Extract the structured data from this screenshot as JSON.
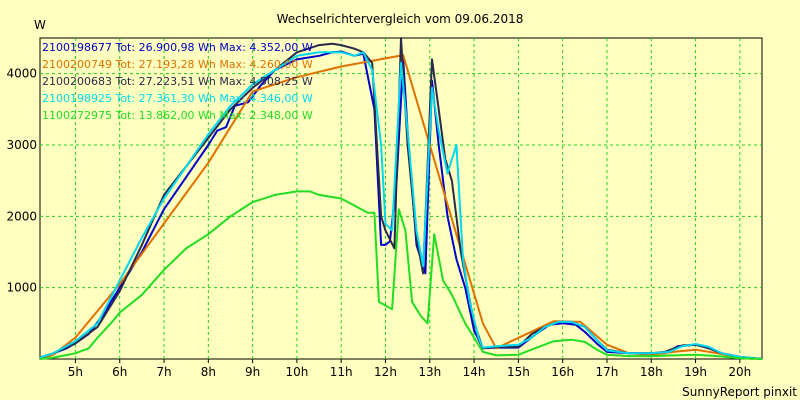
{
  "chart_data": {
    "type": "line",
    "title": "Wechselrichtervergleich vom 09.06.2018",
    "ylabel": "W",
    "footer": "SunnyReport pinxit",
    "xlim": [
      4.2,
      20.5
    ],
    "ylim": [
      0,
      4500
    ],
    "yticks": [
      1000,
      2000,
      3000,
      4000
    ],
    "xticks": [
      {
        "v": 5,
        "label": "5h"
      },
      {
        "v": 6,
        "label": "6h"
      },
      {
        "v": 7,
        "label": "7h"
      },
      {
        "v": 8,
        "label": "8h"
      },
      {
        "v": 9,
        "label": "9h"
      },
      {
        "v": 10,
        "label": "10h"
      },
      {
        "v": 11,
        "label": "11h"
      },
      {
        "v": 12,
        "label": "12h"
      },
      {
        "v": 13,
        "label": "13h"
      },
      {
        "v": 14,
        "label": "14h"
      },
      {
        "v": 15,
        "label": "15h"
      },
      {
        "v": 16,
        "label": "16h"
      },
      {
        "v": 17,
        "label": "17h"
      },
      {
        "v": 18,
        "label": "18h"
      },
      {
        "v": 19,
        "label": "19h"
      },
      {
        "v": 20,
        "label": "20h"
      }
    ],
    "grid": true,
    "series": [
      {
        "name": "2100198677",
        "legend": "2100198677 Tot: 26.900,98 Wh Max: 4.352,00 W",
        "color": "#0000CC",
        "points": [
          [
            4.2,
            20
          ],
          [
            4.5,
            80
          ],
          [
            4.8,
            150
          ],
          [
            5.0,
            220
          ],
          [
            5.3,
            350
          ],
          [
            5.6,
            600
          ],
          [
            6.0,
            1000
          ],
          [
            6.5,
            1500
          ],
          [
            7.0,
            2100
          ],
          [
            7.5,
            2550
          ],
          [
            8.0,
            3000
          ],
          [
            8.2,
            3200
          ],
          [
            8.4,
            3250
          ],
          [
            8.6,
            3550
          ],
          [
            8.9,
            3600
          ],
          [
            9.2,
            3850
          ],
          [
            9.5,
            4050
          ],
          [
            10.0,
            4200
          ],
          [
            10.5,
            4250
          ],
          [
            10.8,
            4300
          ],
          [
            11.0,
            4310
          ],
          [
            11.3,
            4250
          ],
          [
            11.5,
            4280
          ],
          [
            11.75,
            3500
          ],
          [
            11.9,
            1600
          ],
          [
            12.0,
            1600
          ],
          [
            12.1,
            1650
          ],
          [
            12.25,
            2500
          ],
          [
            12.4,
            4200
          ],
          [
            12.5,
            3200
          ],
          [
            12.7,
            1600
          ],
          [
            12.9,
            1200
          ],
          [
            13.05,
            3900
          ],
          [
            13.2,
            3000
          ],
          [
            13.4,
            2000
          ],
          [
            13.6,
            1400
          ],
          [
            13.8,
            1000
          ],
          [
            14.0,
            400
          ],
          [
            14.2,
            150
          ],
          [
            14.5,
            160
          ],
          [
            15.0,
            160
          ],
          [
            15.4,
            350
          ],
          [
            15.7,
            480
          ],
          [
            16.0,
            500
          ],
          [
            16.3,
            480
          ],
          [
            16.5,
            380
          ],
          [
            16.8,
            200
          ],
          [
            17.0,
            100
          ],
          [
            17.5,
            80
          ],
          [
            18.0,
            80
          ],
          [
            18.3,
            80
          ],
          [
            18.6,
            180
          ],
          [
            19.0,
            200
          ],
          [
            19.3,
            150
          ],
          [
            19.6,
            80
          ],
          [
            20.0,
            30
          ],
          [
            20.5,
            0
          ]
        ]
      },
      {
        "name": "2100200749",
        "legend": "2100200749 Tot: 27.193,28 Wh Max: 4.260,00 W",
        "color": "#E07000",
        "points": [
          [
            4.2,
            0
          ],
          [
            4.5,
            60
          ],
          [
            5.0,
            300
          ],
          [
            6.0,
            1050
          ],
          [
            7.0,
            1900
          ],
          [
            8.0,
            2750
          ],
          [
            9.0,
            3750
          ],
          [
            10.0,
            3950
          ],
          [
            11.0,
            4100
          ],
          [
            12.4,
            4260
          ],
          [
            13.0,
            3000
          ],
          [
            14.2,
            500
          ],
          [
            14.5,
            150
          ],
          [
            15.8,
            530
          ],
          [
            16.4,
            520
          ],
          [
            17.0,
            200
          ],
          [
            17.5,
            80
          ],
          [
            18.0,
            60
          ],
          [
            18.5,
            100
          ],
          [
            19.0,
            130
          ],
          [
            19.5,
            80
          ],
          [
            20.0,
            20
          ],
          [
            20.3,
            0
          ]
        ]
      },
      {
        "name": "2100200683",
        "legend": "2100200683 Tot: 27.223,51 Wh Max: 4.508,25 W",
        "color": "#2A2A4A",
        "points": [
          [
            4.2,
            20
          ],
          [
            4.5,
            80
          ],
          [
            5.0,
            220
          ],
          [
            5.5,
            450
          ],
          [
            6.0,
            950
          ],
          [
            6.5,
            1600
          ],
          [
            7.0,
            2300
          ],
          [
            7.5,
            2700
          ],
          [
            8.0,
            3100
          ],
          [
            8.5,
            3500
          ],
          [
            9.0,
            3800
          ],
          [
            9.5,
            4050
          ],
          [
            10.0,
            4300
          ],
          [
            10.5,
            4400
          ],
          [
            10.8,
            4420
          ],
          [
            11.0,
            4400
          ],
          [
            11.3,
            4350
          ],
          [
            11.5,
            4300
          ],
          [
            11.7,
            4150
          ],
          [
            11.9,
            2000
          ],
          [
            12.0,
            1800
          ],
          [
            12.2,
            1550
          ],
          [
            12.35,
            4500
          ],
          [
            12.5,
            3000
          ],
          [
            12.7,
            1700
          ],
          [
            12.85,
            1200
          ],
          [
            13.05,
            4200
          ],
          [
            13.2,
            3500
          ],
          [
            13.35,
            2800
          ],
          [
            13.5,
            2500
          ],
          [
            13.7,
            1500
          ],
          [
            13.85,
            1000
          ],
          [
            14.0,
            500
          ],
          [
            14.2,
            150
          ],
          [
            14.5,
            170
          ],
          [
            15.0,
            170
          ],
          [
            15.3,
            350
          ],
          [
            15.6,
            450
          ],
          [
            15.9,
            520
          ],
          [
            16.2,
            520
          ],
          [
            16.5,
            450
          ],
          [
            16.8,
            250
          ],
          [
            17.0,
            130
          ],
          [
            17.5,
            80
          ],
          [
            18.0,
            80
          ],
          [
            18.3,
            100
          ],
          [
            18.7,
            190
          ],
          [
            19.0,
            200
          ],
          [
            19.3,
            150
          ],
          [
            19.6,
            80
          ],
          [
            20.0,
            30
          ],
          [
            20.5,
            0
          ]
        ]
      },
      {
        "name": "2100198925",
        "legend": "2100198925 Tot: 27.361,30 Wh Max: 4.346,00 W",
        "color": "#00D8F0",
        "points": [
          [
            4.2,
            20
          ],
          [
            4.5,
            80
          ],
          [
            5.0,
            250
          ],
          [
            5.5,
            500
          ],
          [
            6.0,
            1100
          ],
          [
            6.5,
            1700
          ],
          [
            7.0,
            2250
          ],
          [
            7.5,
            2700
          ],
          [
            8.0,
            3150
          ],
          [
            8.5,
            3550
          ],
          [
            9.0,
            3850
          ],
          [
            9.5,
            4050
          ],
          [
            10.0,
            4250
          ],
          [
            10.5,
            4300
          ],
          [
            11.0,
            4300
          ],
          [
            11.3,
            4250
          ],
          [
            11.5,
            4300
          ],
          [
            11.7,
            4050
          ],
          [
            11.9,
            3000
          ],
          [
            12.0,
            1900
          ],
          [
            12.15,
            1800
          ],
          [
            12.35,
            4150
          ],
          [
            12.5,
            3200
          ],
          [
            12.7,
            1800
          ],
          [
            12.85,
            1300
          ],
          [
            13.05,
            3800
          ],
          [
            13.2,
            3200
          ],
          [
            13.4,
            2600
          ],
          [
            13.6,
            3000
          ],
          [
            13.75,
            1400
          ],
          [
            13.9,
            800
          ],
          [
            14.1,
            300
          ],
          [
            14.2,
            160
          ],
          [
            14.5,
            180
          ],
          [
            15.0,
            200
          ],
          [
            15.3,
            300
          ],
          [
            15.6,
            450
          ],
          [
            15.9,
            520
          ],
          [
            16.2,
            520
          ],
          [
            16.5,
            450
          ],
          [
            16.8,
            250
          ],
          [
            17.0,
            120
          ],
          [
            17.5,
            80
          ],
          [
            18.0,
            80
          ],
          [
            18.4,
            100
          ],
          [
            18.7,
            180
          ],
          [
            19.0,
            210
          ],
          [
            19.3,
            170
          ],
          [
            19.6,
            80
          ],
          [
            20.0,
            30
          ],
          [
            20.5,
            0
          ]
        ]
      },
      {
        "name": "1100272975",
        "legend": "1100272975 Tot: 13.862,00 Wh Max: 2.348,00 W",
        "color": "#22DD22",
        "points": [
          [
            4.2,
            0
          ],
          [
            4.5,
            20
          ],
          [
            5.0,
            80
          ],
          [
            5.3,
            150
          ],
          [
            5.5,
            300
          ],
          [
            5.8,
            500
          ],
          [
            6.0,
            650
          ],
          [
            6.5,
            900
          ],
          [
            7.0,
            1250
          ],
          [
            7.5,
            1550
          ],
          [
            8.0,
            1750
          ],
          [
            8.5,
            2000
          ],
          [
            9.0,
            2200
          ],
          [
            9.5,
            2300
          ],
          [
            10.0,
            2350
          ],
          [
            10.3,
            2350
          ],
          [
            10.5,
            2300
          ],
          [
            11.0,
            2250
          ],
          [
            11.3,
            2150
          ],
          [
            11.6,
            2050
          ],
          [
            11.75,
            2050
          ],
          [
            11.85,
            800
          ],
          [
            12.0,
            750
          ],
          [
            12.15,
            700
          ],
          [
            12.3,
            2100
          ],
          [
            12.45,
            1800
          ],
          [
            12.6,
            800
          ],
          [
            12.8,
            600
          ],
          [
            12.95,
            500
          ],
          [
            13.1,
            1750
          ],
          [
            13.3,
            1100
          ],
          [
            13.5,
            900
          ],
          [
            13.8,
            500
          ],
          [
            14.0,
            300
          ],
          [
            14.2,
            100
          ],
          [
            14.5,
            50
          ],
          [
            15.0,
            60
          ],
          [
            15.5,
            180
          ],
          [
            15.8,
            250
          ],
          [
            16.2,
            270
          ],
          [
            16.5,
            240
          ],
          [
            16.8,
            120
          ],
          [
            17.0,
            60
          ],
          [
            17.5,
            40
          ],
          [
            18.0,
            40
          ],
          [
            18.5,
            50
          ],
          [
            19.0,
            60
          ],
          [
            19.5,
            40
          ],
          [
            20.0,
            10
          ],
          [
            20.5,
            0
          ]
        ]
      }
    ]
  }
}
